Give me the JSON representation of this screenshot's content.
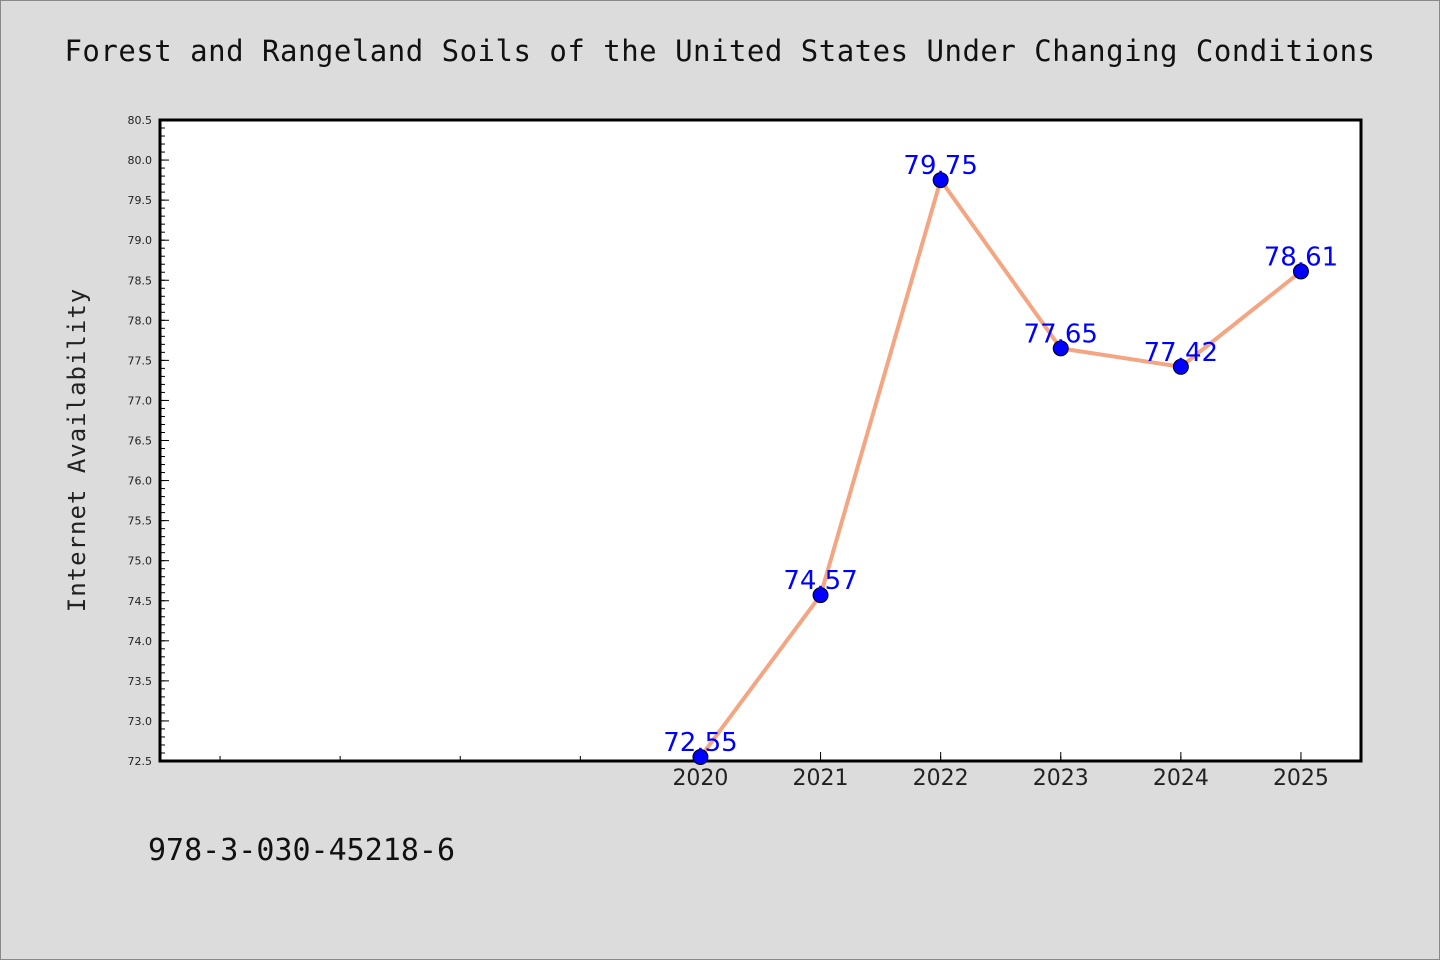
{
  "chart_data": {
    "type": "line",
    "title": "Forest and Rangeland Soils of the United States Under Changing Conditions",
    "ylabel": "Internet Availability",
    "xlabel": "",
    "x": [
      "2020",
      "2021",
      "2022",
      "2023",
      "2024",
      "2025"
    ],
    "series": [
      {
        "values": [
          72.55,
          74.57,
          79.75,
          77.65,
          77.42,
          78.61
        ]
      }
    ],
    "data_labels": [
      "72.55",
      "74.57",
      "79.75",
      "77.65",
      "77.42",
      "78.61"
    ],
    "ylim": [
      72.5,
      80.5
    ],
    "y_ticks": [
      "72.5",
      "73.0",
      "73.5",
      "74.0",
      "74.5",
      "75.0",
      "75.5",
      "76.0",
      "76.5",
      "77.0",
      "77.5",
      "78.0",
      "78.5",
      "79.0",
      "79.5",
      "80.0",
      "80.5"
    ],
    "x_range": [
      2015.5,
      2025.5
    ],
    "grid": false,
    "colors": {
      "line": "#f4a582",
      "marker": "#0000ff",
      "label": "#0000ff"
    }
  },
  "footnote": "978-3-030-45218-6"
}
